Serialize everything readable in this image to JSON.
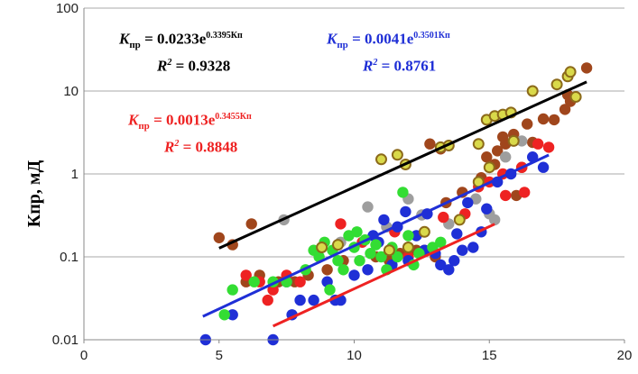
{
  "chart_data": {
    "type": "scatter",
    "title": "",
    "xlabel": "",
    "ylabel": "Кпр, мД",
    "xlim": [
      0,
      20
    ],
    "ylim": [
      0.01,
      100
    ],
    "yscale": "log",
    "xticks": [
      "0",
      "5",
      "10",
      "15",
      "20"
    ],
    "yticks": [
      "0.01",
      "0.1",
      "1",
      "10",
      "100"
    ],
    "grid": true,
    "trendlines": [
      {
        "name": "black",
        "color": "#000000",
        "type": "exponential",
        "a": 0.0233,
        "b": 0.3395,
        "r2": 0.9328,
        "x_range": [
          5,
          18.6
        ]
      },
      {
        "name": "blue",
        "color": "#1f2fd6",
        "type": "exponential",
        "a": 0.0041,
        "b": 0.3501,
        "r2": 0.8761,
        "x_range": [
          4.4,
          17.2
        ]
      },
      {
        "name": "red",
        "color": "#ee2222",
        "type": "exponential",
        "a": 0.0013,
        "b": 0.3455,
        "r2": 0.8848,
        "x_range": [
          7,
          15.2
        ]
      }
    ],
    "equations": [
      {
        "color": "#000000",
        "k": "K",
        "sub": "пр",
        "eq": " = 0.0233e",
        "exp": "0.3395Кп",
        "r2_label": "R",
        "r2_sup": "2",
        "r2_value": " = 0.9328"
      },
      {
        "color": "#1f2fd6",
        "k": "K",
        "sub": "пр",
        "eq": " = 0.0041e",
        "exp": "0.3501Кп",
        "r2_label": "R",
        "r2_sup": "2",
        "r2_value": " = 0.8761"
      },
      {
        "color": "#ee2222",
        "k": "K",
        "sub": "пр",
        "eq": " = 0.0013e",
        "exp": "0.3455Кп",
        "r2_label": "R",
        "r2_sup": "2",
        "r2_value": " = 0.8848"
      }
    ],
    "series": [
      {
        "name": "brown",
        "color": "#a0461c",
        "points": [
          [
            5,
            0.17
          ],
          [
            5.5,
            0.14
          ],
          [
            6.2,
            0.25
          ],
          [
            6,
            0.05
          ],
          [
            6.5,
            0.06
          ],
          [
            7.2,
            0.05
          ],
          [
            7.8,
            0.05
          ],
          [
            8.3,
            0.06
          ],
          [
            9,
            0.07
          ],
          [
            9.6,
            0.09
          ],
          [
            10.8,
            0.1
          ],
          [
            11.3,
            0.09
          ],
          [
            11.7,
            0.11
          ],
          [
            12.3,
            0.12
          ],
          [
            13,
            0.1
          ],
          [
            13.4,
            0.45
          ],
          [
            14,
            0.6
          ],
          [
            14.7,
            0.9
          ],
          [
            15.2,
            1.3
          ],
          [
            15.3,
            1.9
          ],
          [
            15.6,
            2.3
          ],
          [
            15.9,
            3
          ],
          [
            16,
            0.55
          ],
          [
            16.2,
            1.2
          ],
          [
            16.6,
            2.4
          ],
          [
            16.4,
            4
          ],
          [
            17,
            4.6
          ],
          [
            17.4,
            4.5
          ],
          [
            17.8,
            6
          ],
          [
            18,
            7.5
          ],
          [
            17.9,
            9
          ],
          [
            18.6,
            19
          ],
          [
            15.5,
            2.8
          ],
          [
            14.9,
            1.6
          ],
          [
            13.2,
            2.0
          ],
          [
            12.8,
            2.3
          ]
        ]
      },
      {
        "name": "grey",
        "color": "#9e9e9e",
        "points": [
          [
            7.4,
            0.28
          ],
          [
            9.5,
            0.15
          ],
          [
            11.2,
            0.23
          ],
          [
            12.5,
            0.32
          ],
          [
            13.5,
            0.25
          ],
          [
            14.5,
            0.5
          ],
          [
            15,
            0.33
          ],
          [
            15.2,
            0.28
          ],
          [
            15.6,
            1.6
          ],
          [
            16.2,
            2.5
          ],
          [
            12,
            0.5
          ],
          [
            10.5,
            0.4
          ]
        ]
      },
      {
        "name": "red",
        "color": "#ee2222",
        "points": [
          [
            6,
            0.06
          ],
          [
            6.5,
            0.05
          ],
          [
            6.8,
            0.03
          ],
          [
            7,
            0.04
          ],
          [
            7.5,
            0.06
          ],
          [
            8,
            0.05
          ],
          [
            9.5,
            0.25
          ],
          [
            10.3,
            0.15
          ],
          [
            11.5,
            0.2
          ],
          [
            12,
            0.1
          ],
          [
            12.6,
            0.12
          ],
          [
            13.3,
            0.3
          ],
          [
            14.1,
            0.33
          ],
          [
            14.6,
            0.7
          ],
          [
            15,
            0.8
          ],
          [
            15.6,
            0.55
          ],
          [
            16.2,
            1.2
          ],
          [
            16.8,
            2.3
          ],
          [
            17.2,
            2.1
          ],
          [
            16.3,
            0.6
          ],
          [
            15.5,
            1.0
          ]
        ]
      },
      {
        "name": "blue",
        "color": "#1f2fd6",
        "points": [
          [
            4.5,
            0.01
          ],
          [
            5.5,
            0.02
          ],
          [
            7,
            0.01
          ],
          [
            7.5,
            0.05
          ],
          [
            7.7,
            0.02
          ],
          [
            8,
            0.03
          ],
          [
            8.5,
            0.03
          ],
          [
            9,
            0.05
          ],
          [
            9.3,
            0.03
          ],
          [
            9.5,
            0.03
          ],
          [
            10,
            0.06
          ],
          [
            10.5,
            0.07
          ],
          [
            10.9,
            0.15
          ],
          [
            11.1,
            0.28
          ],
          [
            11.4,
            0.08
          ],
          [
            11.6,
            0.23
          ],
          [
            12,
            0.09
          ],
          [
            12.3,
            0.18
          ],
          [
            12.6,
            0.12
          ],
          [
            13,
            0.11
          ],
          [
            13.2,
            0.08
          ],
          [
            13.5,
            0.07
          ],
          [
            13.7,
            0.09
          ],
          [
            14,
            0.12
          ],
          [
            14.4,
            0.13
          ],
          [
            14.7,
            0.2
          ],
          [
            14.9,
            0.38
          ],
          [
            15.3,
            0.8
          ],
          [
            15.8,
            1.0
          ],
          [
            16.6,
            1.6
          ],
          [
            17,
            1.2
          ],
          [
            14.2,
            0.45
          ],
          [
            12.7,
            0.33
          ],
          [
            11.9,
            0.35
          ],
          [
            10.7,
            0.18
          ],
          [
            13.8,
            0.19
          ]
        ]
      },
      {
        "name": "green",
        "color": "#33dd33",
        "points": [
          [
            5.2,
            0.02
          ],
          [
            5.5,
            0.04
          ],
          [
            6.3,
            0.05
          ],
          [
            7,
            0.05
          ],
          [
            7.5,
            0.05
          ],
          [
            8.2,
            0.07
          ],
          [
            8.7,
            0.1
          ],
          [
            8.9,
            0.15
          ],
          [
            9.2,
            0.12
          ],
          [
            9.4,
            0.09
          ],
          [
            9.6,
            0.07
          ],
          [
            9.8,
            0.18
          ],
          [
            10,
            0.13
          ],
          [
            10.2,
            0.09
          ],
          [
            10.4,
            0.16
          ],
          [
            10.6,
            0.11
          ],
          [
            10.8,
            0.14
          ],
          [
            11,
            0.1
          ],
          [
            11.2,
            0.07
          ],
          [
            11.4,
            0.13
          ],
          [
            11.6,
            0.1
          ],
          [
            11.8,
            0.6
          ],
          [
            12,
            0.18
          ],
          [
            12.2,
            0.08
          ],
          [
            12.4,
            0.11
          ],
          [
            12.9,
            0.13
          ],
          [
            13.2,
            0.15
          ],
          [
            9.1,
            0.04
          ],
          [
            8.5,
            0.12
          ],
          [
            10.1,
            0.2
          ]
        ]
      },
      {
        "name": "yellow",
        "color": "#d9d94a",
        "points": [
          [
            8.8,
            0.13
          ],
          [
            9.4,
            0.14
          ],
          [
            11,
            1.5
          ],
          [
            11.6,
            1.7
          ],
          [
            11.9,
            1.3
          ],
          [
            12,
            0.13
          ],
          [
            13.2,
            2.1
          ],
          [
            13.5,
            2.2
          ],
          [
            14.6,
            2.3
          ],
          [
            14.9,
            4.5
          ],
          [
            15.2,
            5
          ],
          [
            15.5,
            5.2
          ],
          [
            15.8,
            5.5
          ],
          [
            16.6,
            10
          ],
          [
            17.5,
            12
          ],
          [
            17.9,
            15
          ],
          [
            18,
            17
          ],
          [
            18.2,
            8.5
          ],
          [
            14.6,
            0.8
          ],
          [
            15.9,
            2.5
          ],
          [
            15,
            1.2
          ],
          [
            12.6,
            0.2
          ],
          [
            13.9,
            0.28
          ],
          [
            11.3,
            0.12
          ]
        ]
      }
    ]
  }
}
